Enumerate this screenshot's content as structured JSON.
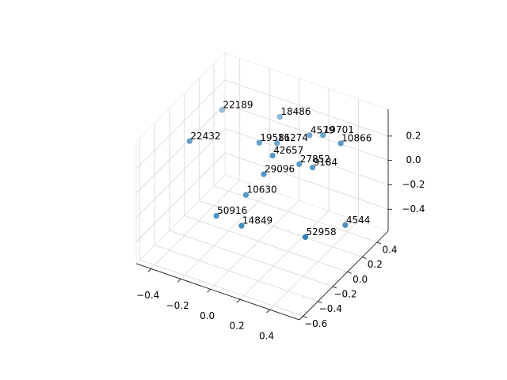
{
  "chart_data": {
    "type": "scatter3d",
    "labels": [
      "22189",
      "18486",
      "22432",
      "19581",
      "16274",
      "4579",
      "19701",
      "10866",
      "42657",
      "27852",
      "9184",
      "29096",
      "10630",
      "50916",
      "14849",
      "52958",
      "4544"
    ],
    "x": [
      -0.4,
      -0.07,
      -0.26,
      0.03,
      0.09,
      0.19,
      0.28,
      0.46,
      0.18,
      0.24,
      0.33,
      0.18,
      0.06,
      -0.02,
      0.15,
      0.52,
      0.55
    ],
    "y": [
      0.31,
      0.43,
      -0.41,
      -0.05,
      0.07,
      0.31,
      0.31,
      0.19,
      -0.17,
      0.07,
      0.07,
      -0.29,
      -0.29,
      -0.53,
      -0.53,
      -0.41,
      0.07
    ],
    "z": [
      0.14,
      0.15,
      0.38,
      0.27,
      0.22,
      0.18,
      0.22,
      0.3,
      0.3,
      0.11,
      0.12,
      0.22,
      0.0,
      -0.06,
      -0.07,
      -0.08,
      -0.26
    ],
    "color": "#1f77b4",
    "xlim": [
      -0.5,
      0.6
    ],
    "ylim": [
      -0.65,
      0.55
    ],
    "zlim": [
      -0.58,
      0.42
    ],
    "xticks": [
      {
        "value": -0.4,
        "label": "−0.4"
      },
      {
        "value": -0.2,
        "label": "−0.2"
      },
      {
        "value": 0.0,
        "label": "0.0"
      },
      0.2,
      0.4
    ],
    "yticks": [
      {
        "value": -0.6,
        "label": "−0.6"
      },
      {
        "value": -0.4,
        "label": "−0.4"
      },
      {
        "value": -0.2,
        "label": "−0.2"
      },
      {
        "value": 0.0,
        "label": "0.0"
      },
      0.2,
      0.4
    ],
    "zticks": [
      {
        "value": -0.4,
        "label": "−0.4"
      },
      {
        "value": -0.2,
        "label": "−0.2"
      },
      {
        "value": 0.0,
        "label": "0.0"
      },
      0.2
    ],
    "grid": true
  }
}
